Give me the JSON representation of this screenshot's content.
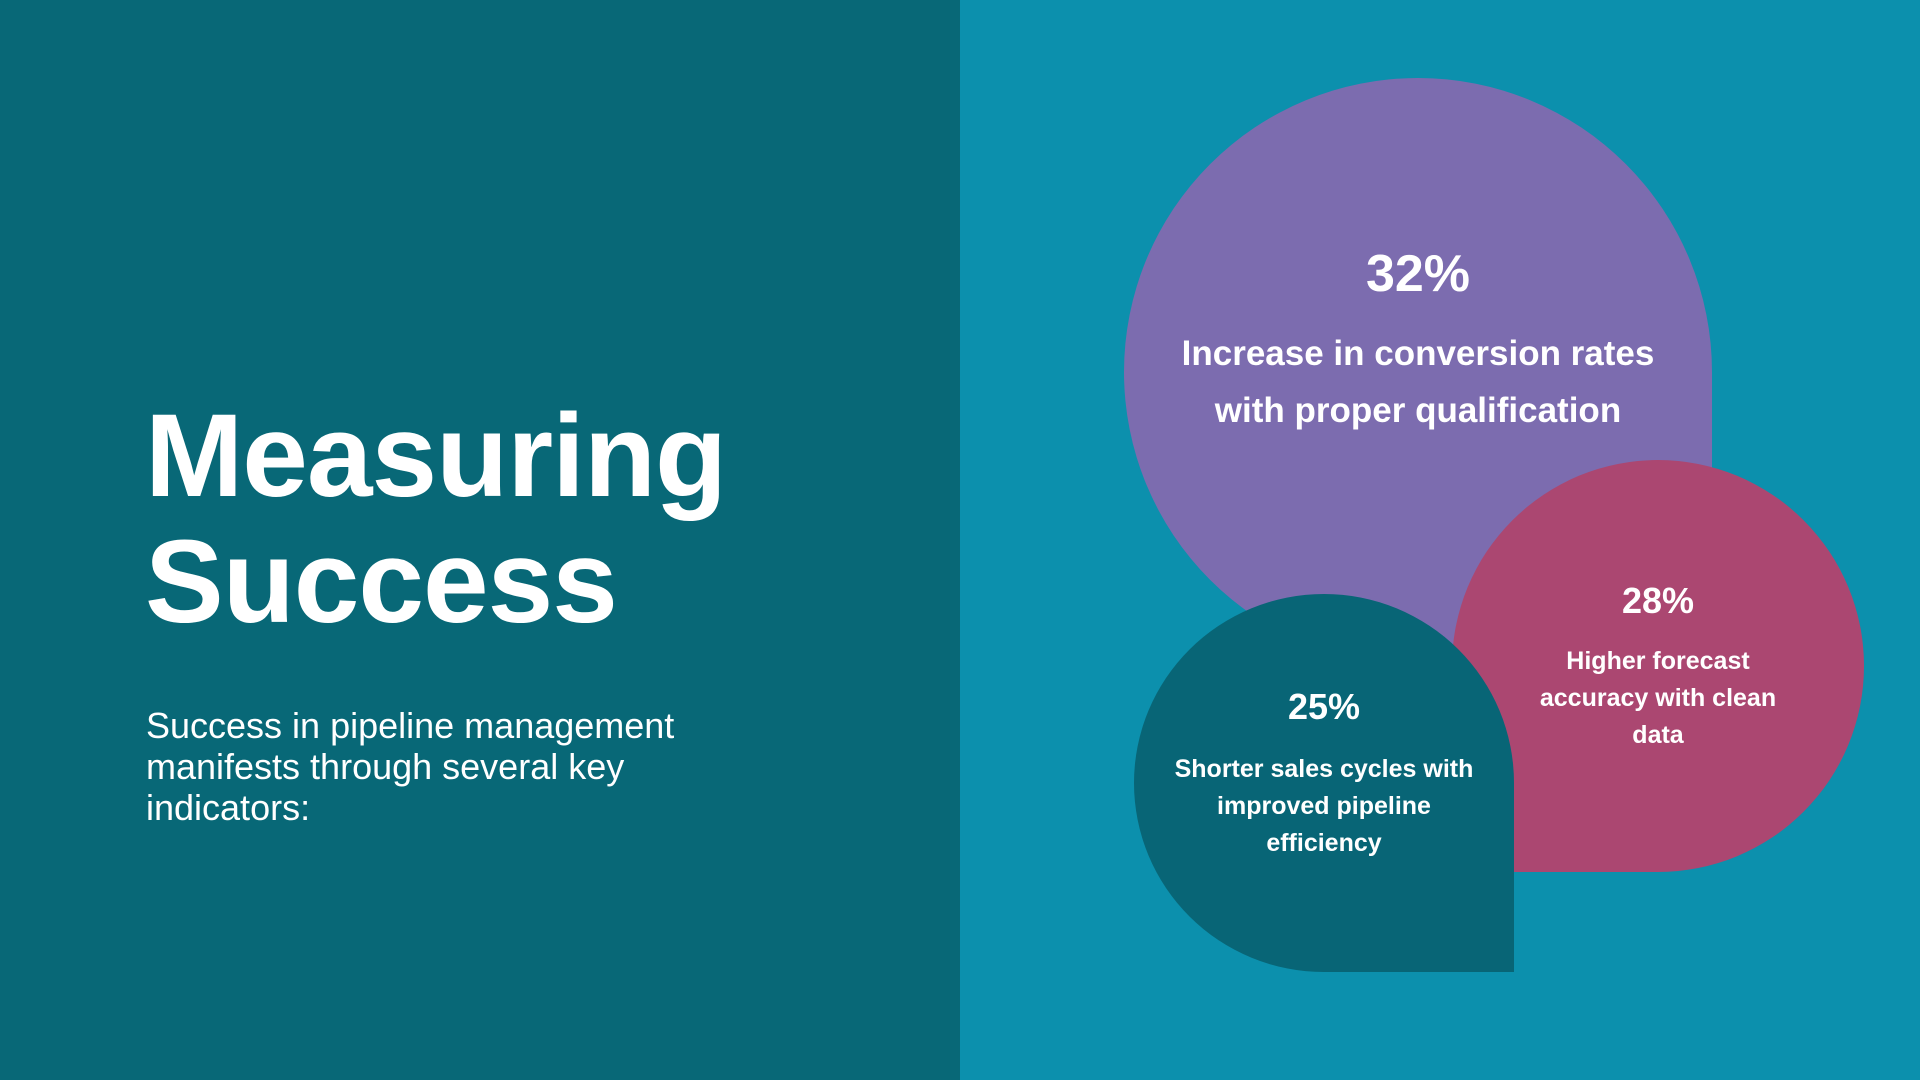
{
  "slide": {
    "title_line1": "Measuring",
    "title_line2": "Success",
    "subtitle": "Success in pipeline management manifests through several key indicators:"
  },
  "stats": [
    {
      "percent": "32%",
      "description": "Increase in conversion rates with proper qualification",
      "color": "#7c6caf"
    },
    {
      "percent": "28%",
      "description": "Higher forecast accuracy with clean data",
      "color": "#ab4771"
    },
    {
      "percent": "25%",
      "description": "Shorter sales cycles with improved pipeline efficiency",
      "color": "#086576"
    }
  ],
  "colors": {
    "left_background": "#086877",
    "right_background": "#0c90ad",
    "text": "#ffffff"
  }
}
